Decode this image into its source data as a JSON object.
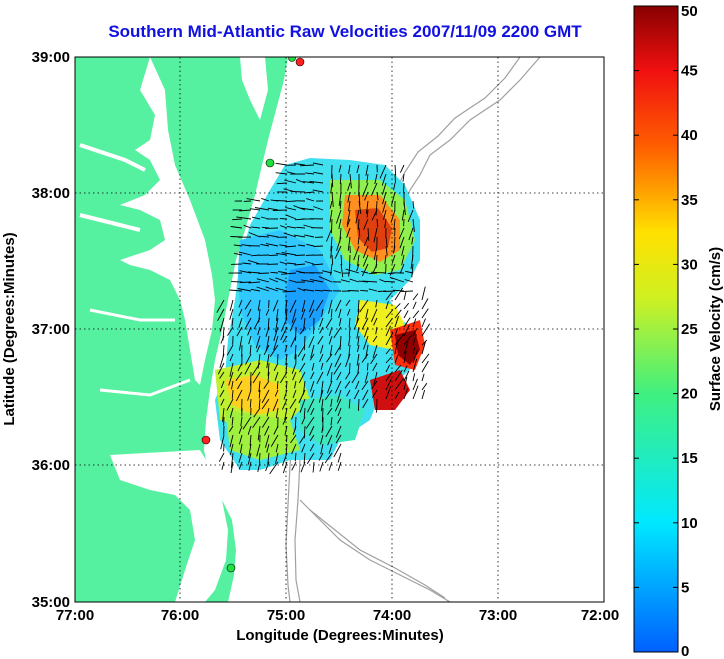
{
  "title": "Southern Mid-Atlantic Raw Velocities 2007/11/09 2200 GMT",
  "xlabel": "Longitude (Degrees:Minutes)",
  "ylabel": "Latitude (Degrees:Minutes)",
  "x_ticks": [
    "77:00",
    "76:00",
    "75:00",
    "74:00",
    "73:00",
    "72:00"
  ],
  "y_ticks": [
    "39:00",
    "38:00",
    "37:00",
    "36:00",
    "35:00"
  ],
  "colorbar": {
    "label": "Surface Velocity (cm/s)",
    "ticks": [
      "0",
      "5",
      "10",
      "15",
      "20",
      "25",
      "30",
      "35",
      "40",
      "45",
      "50"
    ],
    "min": 0,
    "max": 50
  },
  "colors": {
    "land": "#55f0a0",
    "water": "#ffffff",
    "title": "#1010e0",
    "bathymetry": "#a0a0a0",
    "station_red": "#ff2020",
    "station_green": "#20e040"
  }
}
